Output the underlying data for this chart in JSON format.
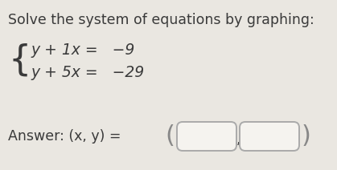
{
  "bg_color": "#eae7e1",
  "title": "Solve the system of equations by graphing:",
  "title_fontsize": 12.5,
  "title_color": "#3a3a3a",
  "eq1": "y + 1x =   −9",
  "eq2": "y + 5x =   −29",
  "answer_prefix": "Answer: (x, y) = ",
  "answer_fontsize": 12.5,
  "eq_fontsize": 13.5,
  "brace_fontsize": 32,
  "text_color": "#3a3a3a",
  "box_edge_color": "#aaaaaa",
  "box_fill_color": "#f5f3ef",
  "paren_color": "#888888"
}
